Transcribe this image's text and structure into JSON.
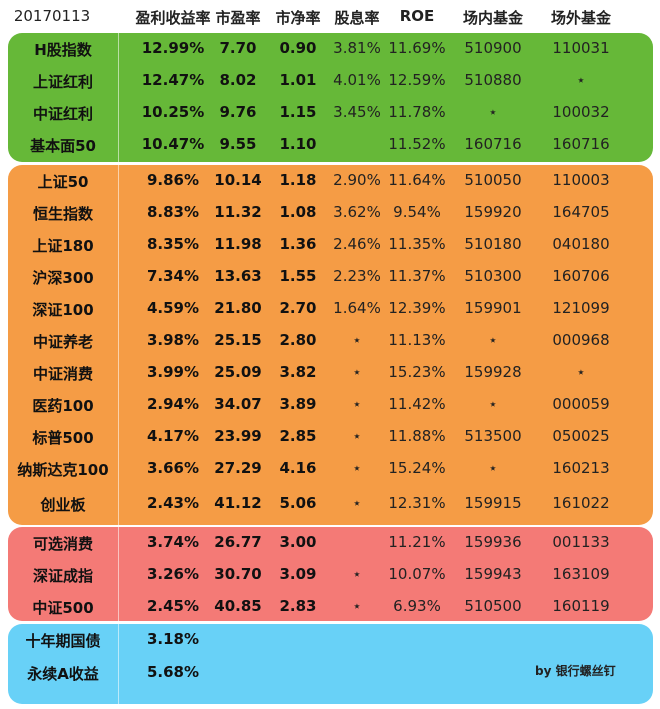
{
  "header": {
    "date": "20170113",
    "cols": [
      "盈利收益率",
      "市盈率",
      "市净率",
      "股息率",
      "ROE",
      "场内基金",
      "场外基金"
    ]
  },
  "groups": [
    {
      "name": "green",
      "color": "#66b838"
    },
    {
      "name": "orange",
      "color": "#f59c45"
    },
    {
      "name": "red",
      "color": "#f47a76"
    },
    {
      "name": "blue",
      "color": "#68d1f7"
    }
  ],
  "rows": [
    {
      "name": "H股指数",
      "ey": "12.99%",
      "pe": "7.70",
      "pb": "0.90",
      "div": "3.81%",
      "roe": "11.69%",
      "etf": "510900",
      "otc": "110031"
    },
    {
      "name": "上证红利",
      "ey": "12.47%",
      "pe": "8.02",
      "pb": "1.01",
      "div": "4.01%",
      "roe": "12.59%",
      "etf": "510880",
      "otc": "⋆"
    },
    {
      "name": "中证红利",
      "ey": "10.25%",
      "pe": "9.76",
      "pb": "1.15",
      "div": "3.45%",
      "roe": "11.78%",
      "etf": "⋆",
      "otc": "100032"
    },
    {
      "name": "基本面50",
      "ey": "10.47%",
      "pe": "9.55",
      "pb": "1.10",
      "div": "",
      "roe": "11.52%",
      "etf": "160716",
      "otc": "160716"
    },
    {
      "name": "上证50",
      "ey": "9.86%",
      "pe": "10.14",
      "pb": "1.18",
      "div": "2.90%",
      "roe": "11.64%",
      "etf": "510050",
      "otc": "110003"
    },
    {
      "name": "恒生指数",
      "ey": "8.83%",
      "pe": "11.32",
      "pb": "1.08",
      "div": "3.62%",
      "roe": "9.54%",
      "etf": "159920",
      "otc": "164705"
    },
    {
      "name": "上证180",
      "ey": "8.35%",
      "pe": "11.98",
      "pb": "1.36",
      "div": "2.46%",
      "roe": "11.35%",
      "etf": "510180",
      "otc": "040180"
    },
    {
      "name": "沪深300",
      "ey": "7.34%",
      "pe": "13.63",
      "pb": "1.55",
      "div": "2.23%",
      "roe": "11.37%",
      "etf": "510300",
      "otc": "160706"
    },
    {
      "name": "深证100",
      "ey": "4.59%",
      "pe": "21.80",
      "pb": "2.70",
      "div": "1.64%",
      "roe": "12.39%",
      "etf": "159901",
      "otc": "121099"
    },
    {
      "name": "中证养老",
      "ey": "3.98%",
      "pe": "25.15",
      "pb": "2.80",
      "div": "⋆",
      "roe": "11.13%",
      "etf": "⋆",
      "otc": "000968"
    },
    {
      "name": "中证消费",
      "ey": "3.99%",
      "pe": "25.09",
      "pb": "3.82",
      "div": "⋆",
      "roe": "15.23%",
      "etf": "159928",
      "otc": "⋆"
    },
    {
      "name": "医药100",
      "ey": "2.94%",
      "pe": "34.07",
      "pb": "3.89",
      "div": "⋆",
      "roe": "11.42%",
      "etf": "⋆",
      "otc": "000059"
    },
    {
      "name": "标普500",
      "ey": "4.17%",
      "pe": "23.99",
      "pb": "2.85",
      "div": "⋆",
      "roe": "11.88%",
      "etf": "513500",
      "otc": "050025"
    },
    {
      "name": "纳斯达克100",
      "ey": "3.66%",
      "pe": "27.29",
      "pb": "4.16",
      "div": "⋆",
      "roe": "15.24%",
      "etf": "⋆",
      "otc": "160213"
    },
    {
      "name": "创业板",
      "ey": "2.43%",
      "pe": "41.12",
      "pb": "5.06",
      "div": "⋆",
      "roe": "12.31%",
      "etf": "159915",
      "otc": "161022"
    },
    {
      "name": "可选消费",
      "ey": "3.74%",
      "pe": "26.77",
      "pb": "3.00",
      "div": "",
      "roe": "11.21%",
      "etf": "159936",
      "otc": "001133"
    },
    {
      "name": "深证成指",
      "ey": "3.26%",
      "pe": "30.70",
      "pb": "3.09",
      "div": "⋆",
      "roe": "10.07%",
      "etf": "159943",
      "otc": "163109"
    },
    {
      "name": "中证500",
      "ey": "2.45%",
      "pe": "40.85",
      "pb": "2.83",
      "div": "⋆",
      "roe": "6.93%",
      "etf": "510500",
      "otc": "160119"
    },
    {
      "name": "十年期国债",
      "ey": "3.18%",
      "pe": "",
      "pb": "",
      "div": "",
      "roe": "",
      "etf": "",
      "otc": ""
    },
    {
      "name": "永续A收益",
      "ey": "5.68%",
      "pe": "",
      "pb": "",
      "div": "",
      "roe": "",
      "etf": "",
      "otc": ""
    }
  ],
  "credit": "by 银行螺丝钉"
}
